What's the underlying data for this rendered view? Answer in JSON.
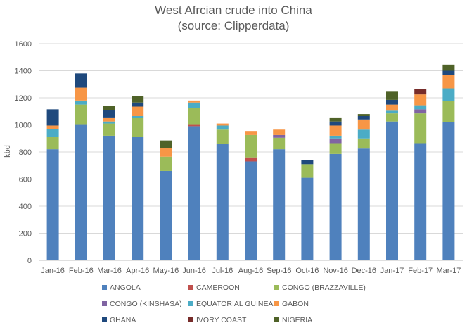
{
  "chart_data": {
    "type": "bar",
    "stacked": true,
    "title": "West Afrcian crude into China",
    "subtitle": "(source: Clipperdata)",
    "xlabel": "",
    "ylabel": "kbd",
    "ylim": [
      0,
      1600
    ],
    "yticks": [
      0,
      200,
      400,
      600,
      800,
      1000,
      1200,
      1400,
      1600
    ],
    "grid": true,
    "legend_position": "bottom",
    "categories": [
      "Jan-16",
      "Feb-16",
      "Mar-16",
      "Apr-16",
      "May-16",
      "Jun-16",
      "Jul-16",
      "Aug-16",
      "Sep-16",
      "Oct-16",
      "Nov-16",
      "Dec-16",
      "Jan-17",
      "Feb-17",
      "Mar-17"
    ],
    "series": [
      {
        "name": "ANGOLA",
        "color": "#4f81bd",
        "values": [
          820,
          1005,
          920,
          910,
          660,
          990,
          860,
          730,
          820,
          610,
          785,
          825,
          1025,
          865,
          1020
        ]
      },
      {
        "name": "CAMEROON",
        "color": "#c0504d",
        "values": [
          0,
          0,
          0,
          0,
          0,
          15,
          0,
          30,
          0,
          0,
          0,
          0,
          0,
          0,
          0
        ]
      },
      {
        "name": "CONGO (BRAZZAVILLE)",
        "color": "#9bbb59",
        "values": [
          90,
          145,
          90,
          140,
          105,
          120,
          105,
          165,
          85,
          100,
          80,
          75,
          60,
          220,
          155
        ]
      },
      {
        "name": "CONGO (KINSHASA)",
        "color": "#8064a2",
        "values": [
          0,
          0,
          0,
          0,
          0,
          0,
          0,
          0,
          20,
          0,
          35,
          0,
          0,
          30,
          0
        ]
      },
      {
        "name": "EQUATORIAL GUINEA",
        "color": "#4bacc6",
        "values": [
          60,
          30,
          15,
          15,
          0,
          40,
          30,
          0,
          0,
          0,
          20,
          65,
          20,
          30,
          95
        ]
      },
      {
        "name": "GABON",
        "color": "#f79646",
        "values": [
          25,
          95,
          30,
          70,
          65,
          15,
          15,
          30,
          40,
          0,
          75,
          75,
          45,
          80,
          100
        ]
      },
      {
        "name": "GHANA",
        "color": "#1f497d",
        "values": [
          120,
          105,
          55,
          30,
          0,
          0,
          0,
          0,
          0,
          30,
          30,
          25,
          35,
          0,
          30
        ]
      },
      {
        "name": "IVORY COAST",
        "color": "#772c2a",
        "values": [
          0,
          0,
          0,
          0,
          0,
          0,
          0,
          0,
          0,
          0,
          0,
          0,
          0,
          40,
          0
        ]
      },
      {
        "name": "NIGERIA",
        "color": "#4f6228",
        "values": [
          0,
          0,
          30,
          50,
          55,
          0,
          0,
          0,
          0,
          0,
          30,
          15,
          60,
          0,
          45
        ]
      }
    ]
  }
}
